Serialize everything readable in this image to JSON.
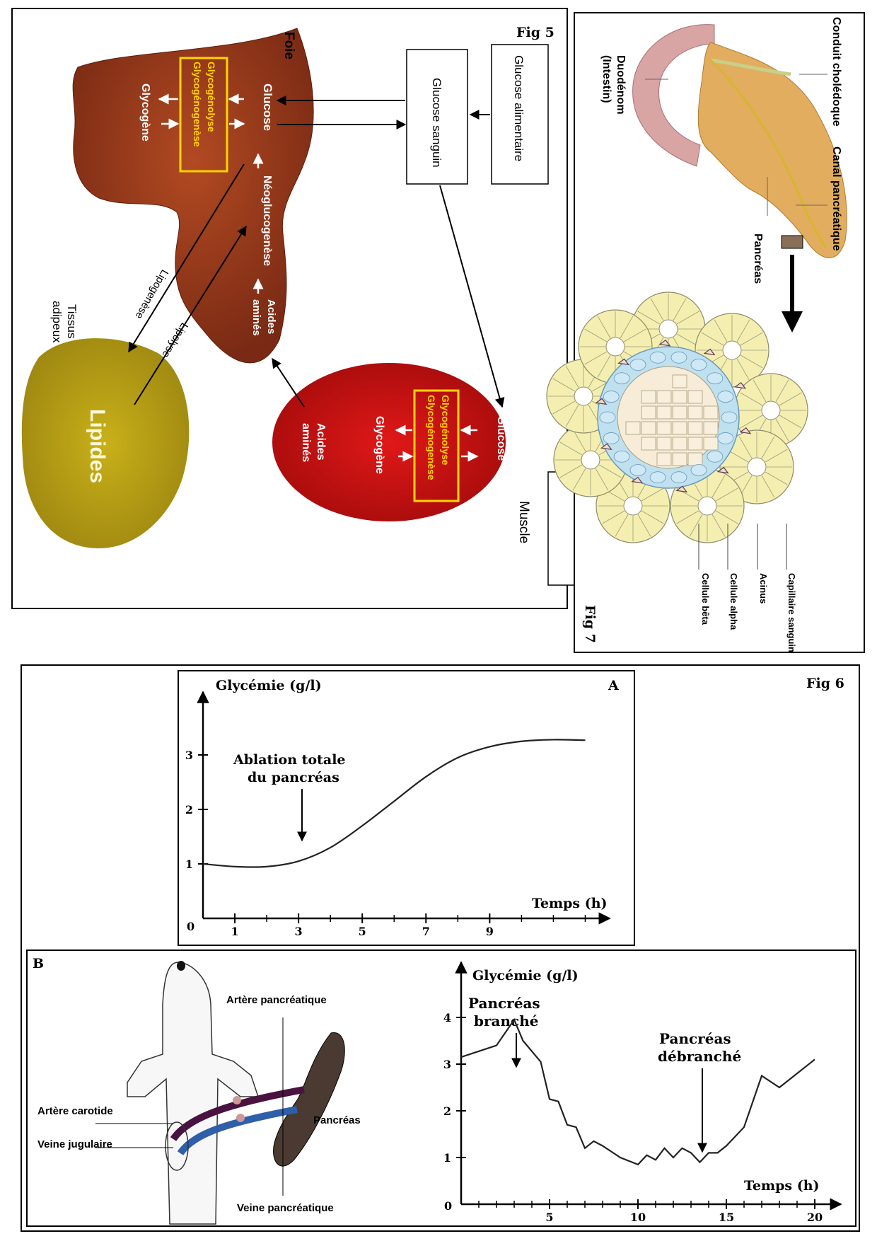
{
  "fig5": {
    "title": "Fig 5",
    "foie": "Foie",
    "liver_glucose": "Glucose",
    "liver_glycogenolyse": "Glycogénolyse",
    "liver_glycogenogenese": "Glycogénogenèse",
    "liver_glycogene": "Glycogène",
    "neoglucogenese": "Néoglucogenèse",
    "liver_acides": "Acides",
    "liver_amines": "aminés",
    "glucose_sanguin": "Glucose sanguin",
    "glucose_alimentaire": "Glucose alimentaire",
    "lipogenese": "Lipogenèse",
    "lipolyse": "Lipolyse",
    "tissus": "Tissus",
    "adipeux": "adipeux",
    "lipides": "Lipides",
    "muscle": "Muscle",
    "muscle_glucose": "Glucose",
    "muscle_glycogenolyse": "Glycogénolyse",
    "muscle_glycogenogenese": "Glycogénogenèse",
    "muscle_glycogene": "Glycogène",
    "muscle_acides": "Acides",
    "muscle_amines": "aminés"
  },
  "fig7": {
    "title": "Fig 7",
    "duodenum_1": "Duodénom",
    "duodenum_2": "(Intestin)",
    "conduit": "Conduit cholédoque",
    "canal": "Canal pancréatique",
    "pancreas": "Pancréas",
    "capillaire": "Capillaire sanguin",
    "acinus": "Acinus",
    "cellule_alpha": "Cellule alpha",
    "cellule_beta": "Cellule bêta"
  },
  "fig6": {
    "title": "Fig 6",
    "panelA": {
      "label": "A",
      "ylabel": "Glycémie (g/l)",
      "xlabel": "Temps (h)",
      "annotation_1": "Ablation totale",
      "annotation_2": "du pancréas",
      "origin": "0"
    },
    "panelB": {
      "label": "B",
      "artere_pancreatique": "Artère pancréatique",
      "artere_carotide": "Artère carotide",
      "veine_jugulaire": "Veine jugulaire",
      "pancreas": "Pancréas",
      "veine_pancreatique": "Veine pancréatique",
      "ylabel": "Glycémie (g/l)",
      "xlabel": "Temps (h)",
      "annot_branche_1": "Pancréas",
      "annot_branche_2": "branché",
      "annot_debranche_1": "Pancréas",
      "annot_debranche_2": "débranché",
      "origin": "0"
    }
  },
  "chart_data": [
    {
      "type": "line",
      "ylabel": "Glycémie (g/l)",
      "xlabel": "Temps (h)",
      "xticks": [
        1,
        3,
        5,
        7,
        9
      ],
      "yticks": [
        1,
        2,
        3
      ],
      "xlim": [
        0,
        12.5
      ],
      "ylim": [
        0,
        4
      ],
      "x": [
        0,
        1,
        2,
        3,
        4,
        5,
        6,
        7,
        8,
        9,
        10,
        11,
        12
      ],
      "y": [
        1.0,
        0.95,
        0.95,
        1.05,
        1.3,
        1.7,
        2.15,
        2.6,
        2.95,
        3.15,
        3.25,
        3.28,
        3.27
      ]
    },
    {
      "type": "line",
      "ylabel": "Glycémie (g/l)",
      "xlabel": "Temps (h)",
      "xticks": [
        5,
        10,
        15,
        20
      ],
      "yticks": [
        1,
        2,
        3,
        4
      ],
      "xlim": [
        0,
        21
      ],
      "ylim": [
        0,
        5
      ],
      "x": [
        0,
        2,
        3,
        3.5,
        4.5,
        5,
        5.5,
        6,
        6.5,
        7,
        7.5,
        8,
        9,
        10,
        10.5,
        11,
        11.5,
        12,
        12.5,
        13,
        13.5,
        14,
        14.5,
        15,
        16,
        17,
        18,
        20
      ],
      "y": [
        3.15,
        3.4,
        3.95,
        3.5,
        3.05,
        2.25,
        2.2,
        1.7,
        1.65,
        1.2,
        1.35,
        1.25,
        1.0,
        0.85,
        1.05,
        0.95,
        1.2,
        1.0,
        1.2,
        1.1,
        0.9,
        1.1,
        1.1,
        1.25,
        1.65,
        2.75,
        2.5,
        3.1
      ]
    }
  ]
}
